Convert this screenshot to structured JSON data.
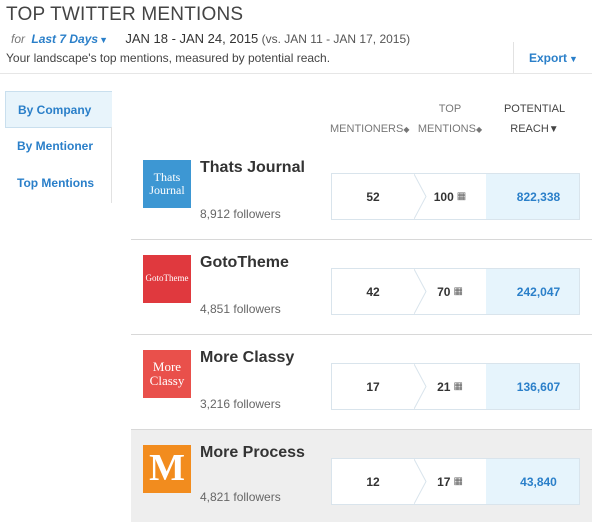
{
  "header": {
    "title": "TOP TWITTER MENTIONS",
    "for_label": "for",
    "period": "Last 7 Days",
    "date_range": "JAN 18 - JAN 24, 2015",
    "comparison": "(vs. JAN 11 - JAN 17, 2015)",
    "subtitle": "Your landscape's top mentions, measured by potential reach.",
    "export_label": "Export"
  },
  "sidebar": {
    "items": [
      {
        "label": "By Company",
        "active": true
      },
      {
        "label": "By Mentioner",
        "active": false
      },
      {
        "label": "Top Mentions",
        "active": false
      }
    ]
  },
  "columns": {
    "mentioners": "MENTIONERS",
    "top_line1": "TOP",
    "top_line2": "MENTIONS",
    "reach_line1": "POTENTIAL",
    "reach_line2": "REACH"
  },
  "rows": [
    {
      "logo_text": "Thats Journal",
      "logo_color": "#3d97d3",
      "name": "Thats Journal",
      "followers": "8,912 followers",
      "mentioners": "52",
      "top_mentions": "100",
      "reach": "822,338"
    },
    {
      "logo_text": "GotoTheme",
      "logo_color": "#e0393e",
      "name": "GotoTheme",
      "followers": "4,851 followers",
      "mentioners": "42",
      "top_mentions": "70",
      "reach": "242,047"
    },
    {
      "logo_text": "More Classy",
      "logo_color": "#e9504b",
      "name": "More Classy",
      "followers": "3,216 followers",
      "mentioners": "17",
      "top_mentions": "21",
      "reach": "136,607"
    },
    {
      "logo_text": "M",
      "logo_color": "#f28c1e",
      "name": "More Process",
      "followers": "4,821 followers",
      "mentioners": "12",
      "top_mentions": "17",
      "reach": "43,840"
    }
  ],
  "colors": {
    "accent": "#2a7fc9",
    "reach_bg": "#e6f4fc",
    "highlight_row": "#eeeeee"
  },
  "icons": {
    "calendar": "calendar-icon",
    "sort": "sort-icon",
    "caret": "chevron-down-icon"
  }
}
